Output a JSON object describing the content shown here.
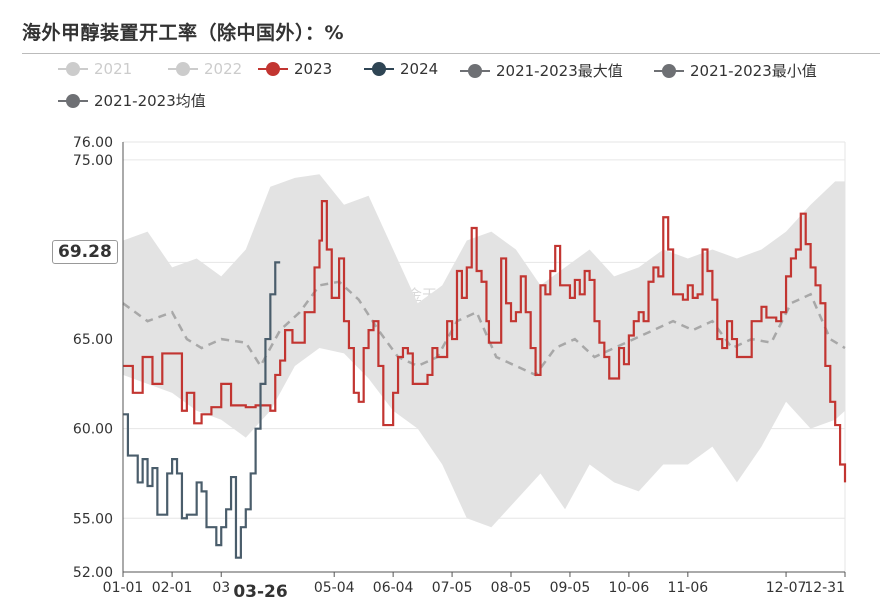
{
  "title": "海外甲醇装置开工率（除中国外）：%",
  "legend": [
    {
      "id": "2021",
      "label": "2021",
      "color": "#cccccc",
      "text_color": "#cccccc"
    },
    {
      "id": "2022",
      "label": "2022",
      "color": "#cccccc",
      "text_color": "#cccccc"
    },
    {
      "id": "2023",
      "label": "2023",
      "color": "#c23531",
      "text_color": "#333333"
    },
    {
      "id": "2024",
      "label": "2024",
      "color": "#2f4554",
      "text_color": "#333333"
    },
    {
      "id": "max",
      "label": "2021-2023最大值",
      "color": "#6e7074",
      "text_color": "#333333"
    },
    {
      "id": "min",
      "label": "2021-2023最小值",
      "color": "#6e7074",
      "text_color": "#333333"
    },
    {
      "id": "avg",
      "label": "2021-2023均值",
      "color": "#6e7074",
      "text_color": "#333333"
    }
  ],
  "watermark": "紫金天风期货",
  "y_pointer_label": "69.28",
  "x_pointer_label": "03-26",
  "colors": {
    "y2023": "#c23531",
    "y2024": "#4a5d6b",
    "band": "#e3e3e3",
    "avg": "#a8a8a8",
    "grid": "#e6e6e6",
    "axis": "#555555"
  },
  "chart_data": {
    "type": "line",
    "title": "海外甲醇装置开工率（除中国外）：%",
    "y_ticks": [
      "52.00",
      "55.00",
      "60.00",
      "65.00",
      "75.00",
      "76.00"
    ],
    "x_ticks": [
      "01-01",
      "02-01",
      "03",
      "05-04",
      "06-04",
      "07-05",
      "08-05",
      "09-05",
      "10-06",
      "11-06",
      "12-07",
      "12-31"
    ],
    "ylim": [
      52,
      76
    ],
    "xlim": [
      "01-01",
      "12-31"
    ],
    "grid": true,
    "legend_position": "top",
    "series": [
      {
        "name": "2023",
        "points": [
          [
            0,
            63.5
          ],
          [
            0.02,
            62
          ],
          [
            0.04,
            64
          ],
          [
            0.06,
            62.5
          ],
          [
            0.08,
            64.2
          ],
          [
            0.1,
            64.2
          ],
          [
            0.12,
            61
          ],
          [
            0.13,
            62
          ],
          [
            0.145,
            60.3
          ],
          [
            0.16,
            60.8
          ],
          [
            0.18,
            61.2
          ],
          [
            0.2,
            62.5
          ],
          [
            0.22,
            61.3
          ],
          [
            0.25,
            61.2
          ],
          [
            0.27,
            61.3
          ],
          [
            0.3,
            61
          ],
          [
            0.31,
            63
          ],
          [
            0.32,
            63.8
          ],
          [
            0.33,
            65.5
          ],
          [
            0.345,
            64.8
          ],
          [
            0.36,
            64.8
          ],
          [
            0.37,
            66.5
          ],
          [
            0.38,
            66.5
          ],
          [
            0.39,
            69
          ],
          [
            0.4,
            70.5
          ],
          [
            0.405,
            72.7
          ],
          [
            0.415,
            70
          ],
          [
            0.425,
            67.3
          ],
          [
            0.44,
            69.5
          ],
          [
            0.45,
            66
          ],
          [
            0.46,
            64.5
          ],
          [
            0.47,
            62
          ],
          [
            0.48,
            61.5
          ],
          [
            0.49,
            64.5
          ],
          [
            0.5,
            65.5
          ],
          [
            0.51,
            66
          ],
          [
            0.52,
            63.5
          ],
          [
            0.53,
            60.2
          ],
          [
            0.54,
            60.2
          ],
          [
            0.55,
            62
          ],
          [
            0.56,
            64
          ],
          [
            0.57,
            64.5
          ],
          [
            0.58,
            64.2
          ],
          [
            0.59,
            62.5
          ],
          [
            0.6,
            62.5
          ],
          [
            0.61,
            62.5
          ],
          [
            0.62,
            63
          ],
          [
            0.63,
            64.5
          ],
          [
            0.64,
            64
          ],
          [
            0.65,
            64
          ],
          [
            0.66,
            66
          ],
          [
            0.67,
            65
          ],
          [
            0.68,
            68.8
          ],
          [
            0.69,
            67.3
          ],
          [
            0.7,
            69
          ],
          [
            0.71,
            71.2
          ],
          [
            0.72,
            68.8
          ],
          [
            0.73,
            68.2
          ],
          [
            0.74,
            66
          ],
          [
            0.745,
            64.8
          ],
          [
            0.76,
            64.8
          ],
          [
            0.77,
            69.5
          ],
          [
            0.78,
            67
          ],
          [
            0.79,
            66
          ],
          [
            0.8,
            66.5
          ],
          [
            0.81,
            68.5
          ],
          [
            0.82,
            66.5
          ],
          [
            0.83,
            64.5
          ],
          [
            0.84,
            63
          ],
          [
            0.85,
            68
          ],
          [
            0.86,
            67.5
          ],
          [
            0.87,
            68.8
          ],
          [
            0.88,
            70.2
          ],
          [
            0.89,
            68
          ],
          [
            0.9,
            68
          ],
          [
            0.91,
            67.3
          ],
          [
            0.92,
            68.3
          ],
          [
            0.93,
            67.5
          ],
          [
            0.94,
            68.8
          ],
          [
            0.95,
            68.3
          ],
          [
            0.96,
            66
          ],
          [
            0.97,
            64.8
          ],
          [
            0.98,
            64
          ],
          [
            0.99,
            62.8
          ],
          [
            1.0,
            62.8
          ],
          [
            1.01,
            64.5
          ],
          [
            1.02,
            63.6
          ],
          [
            1.03,
            65.2
          ],
          [
            1.04,
            66
          ],
          [
            1.05,
            66.5
          ],
          [
            1.06,
            66
          ],
          [
            1.07,
            68.2
          ],
          [
            1.08,
            69
          ],
          [
            1.09,
            68.5
          ],
          [
            1.1,
            71.8
          ],
          [
            1.11,
            70
          ],
          [
            1.12,
            67.5
          ],
          [
            1.13,
            67.5
          ],
          [
            1.14,
            67.2
          ],
          [
            1.15,
            68
          ],
          [
            1.16,
            67.3
          ],
          [
            1.17,
            67.5
          ],
          [
            1.18,
            70
          ],
          [
            1.19,
            68.8
          ],
          [
            1.2,
            67.2
          ],
          [
            1.21,
            65
          ],
          [
            1.22,
            64.5
          ],
          [
            1.23,
            66
          ],
          [
            1.24,
            65
          ],
          [
            1.25,
            64
          ],
          [
            1.26,
            64
          ],
          [
            1.27,
            64
          ],
          [
            1.28,
            66
          ],
          [
            1.29,
            66
          ],
          [
            1.3,
            66.8
          ],
          [
            1.31,
            66.2
          ],
          [
            1.32,
            66.2
          ],
          [
            1.33,
            66
          ],
          [
            1.34,
            66.5
          ],
          [
            1.35,
            68.5
          ],
          [
            1.36,
            69.5
          ],
          [
            1.37,
            70
          ],
          [
            1.38,
            72
          ],
          [
            1.39,
            70.3
          ],
          [
            1.4,
            69
          ],
          [
            1.41,
            68
          ],
          [
            1.42,
            67
          ],
          [
            1.43,
            63.5
          ],
          [
            1.44,
            61.5
          ],
          [
            1.45,
            60.2
          ],
          [
            1.46,
            58
          ],
          [
            1.47,
            57
          ]
        ]
      },
      {
        "name": "2024",
        "points": [
          [
            0,
            60.8
          ],
          [
            0.01,
            58.5
          ],
          [
            0.02,
            58.5
          ],
          [
            0.03,
            57
          ],
          [
            0.04,
            58.3
          ],
          [
            0.05,
            56.8
          ],
          [
            0.06,
            57.8
          ],
          [
            0.07,
            55.2
          ],
          [
            0.08,
            55.2
          ],
          [
            0.09,
            57.5
          ],
          [
            0.1,
            58.3
          ],
          [
            0.11,
            57.5
          ],
          [
            0.12,
            55
          ],
          [
            0.13,
            55.2
          ],
          [
            0.14,
            55.2
          ],
          [
            0.15,
            57
          ],
          [
            0.16,
            56.5
          ],
          [
            0.17,
            54.5
          ],
          [
            0.18,
            54.5
          ],
          [
            0.19,
            53.5
          ],
          [
            0.2,
            54.5
          ],
          [
            0.21,
            55.5
          ],
          [
            0.22,
            57.3
          ],
          [
            0.23,
            52.8
          ],
          [
            0.24,
            54.5
          ],
          [
            0.25,
            55.5
          ],
          [
            0.26,
            57.5
          ],
          [
            0.27,
            60
          ],
          [
            0.28,
            62.5
          ],
          [
            0.29,
            65
          ],
          [
            0.3,
            67.5
          ],
          [
            0.31,
            69.28
          ],
          [
            0.32,
            69.28
          ]
        ]
      },
      {
        "name": "2021-2023均值",
        "points": [
          [
            0,
            67
          ],
          [
            0.05,
            66
          ],
          [
            0.1,
            66.5
          ],
          [
            0.13,
            65
          ],
          [
            0.16,
            64.5
          ],
          [
            0.2,
            65
          ],
          [
            0.25,
            64.8
          ],
          [
            0.28,
            63.5
          ],
          [
            0.32,
            65.5
          ],
          [
            0.36,
            66.5
          ],
          [
            0.4,
            68
          ],
          [
            0.44,
            68.2
          ],
          [
            0.48,
            67.2
          ],
          [
            0.52,
            65.5
          ],
          [
            0.56,
            64
          ],
          [
            0.6,
            63.5
          ],
          [
            0.64,
            64
          ],
          [
            0.68,
            66
          ],
          [
            0.72,
            66.5
          ],
          [
            0.76,
            64
          ],
          [
            0.8,
            63.5
          ],
          [
            0.84,
            63
          ],
          [
            0.88,
            64.5
          ],
          [
            0.92,
            65
          ],
          [
            0.96,
            64
          ],
          [
            1.0,
            64.5
          ],
          [
            1.04,
            65
          ],
          [
            1.08,
            65.5
          ],
          [
            1.12,
            66
          ],
          [
            1.16,
            65.5
          ],
          [
            1.2,
            66
          ],
          [
            1.24,
            64.5
          ],
          [
            1.28,
            65
          ],
          [
            1.32,
            64.8
          ],
          [
            1.36,
            67
          ],
          [
            1.4,
            67.5
          ],
          [
            1.44,
            65
          ],
          [
            1.47,
            64.5
          ]
        ]
      },
      {
        "name": "band_upper",
        "points": [
          [
            0,
            70.5
          ],
          [
            0.05,
            71
          ],
          [
            0.1,
            69
          ],
          [
            0.15,
            69.5
          ],
          [
            0.2,
            68.5
          ],
          [
            0.25,
            70
          ],
          [
            0.3,
            73.5
          ],
          [
            0.35,
            74
          ],
          [
            0.4,
            74.2
          ],
          [
            0.45,
            72.5
          ],
          [
            0.5,
            73
          ],
          [
            0.55,
            70
          ],
          [
            0.6,
            67
          ],
          [
            0.65,
            68
          ],
          [
            0.7,
            70.5
          ],
          [
            0.75,
            71
          ],
          [
            0.8,
            70
          ],
          [
            0.85,
            68
          ],
          [
            0.9,
            69
          ],
          [
            0.95,
            70
          ],
          [
            1.0,
            68.5
          ],
          [
            1.05,
            69
          ],
          [
            1.1,
            70
          ],
          [
            1.15,
            69.5
          ],
          [
            1.2,
            70
          ],
          [
            1.25,
            69.5
          ],
          [
            1.3,
            70
          ],
          [
            1.35,
            71
          ],
          [
            1.4,
            72.5
          ],
          [
            1.45,
            73.8
          ],
          [
            1.47,
            73.8
          ]
        ]
      },
      {
        "name": "band_lower",
        "points": [
          [
            0,
            63
          ],
          [
            0.05,
            62.5
          ],
          [
            0.1,
            62
          ],
          [
            0.15,
            61
          ],
          [
            0.2,
            60.5
          ],
          [
            0.25,
            59.5
          ],
          [
            0.3,
            61
          ],
          [
            0.35,
            63.5
          ],
          [
            0.4,
            64.5
          ],
          [
            0.45,
            64.2
          ],
          [
            0.5,
            62.8
          ],
          [
            0.55,
            61
          ],
          [
            0.6,
            60
          ],
          [
            0.65,
            58
          ],
          [
            0.7,
            55
          ],
          [
            0.75,
            54.5
          ],
          [
            0.8,
            56
          ],
          [
            0.85,
            57.5
          ],
          [
            0.9,
            55.5
          ],
          [
            0.95,
            58
          ],
          [
            1.0,
            57
          ],
          [
            1.05,
            56.5
          ],
          [
            1.1,
            58
          ],
          [
            1.15,
            58
          ],
          [
            1.2,
            59
          ],
          [
            1.25,
            57
          ],
          [
            1.3,
            59
          ],
          [
            1.35,
            61.5
          ],
          [
            1.4,
            60
          ],
          [
            1.45,
            60.5
          ],
          [
            1.47,
            61
          ]
        ]
      }
    ]
  }
}
